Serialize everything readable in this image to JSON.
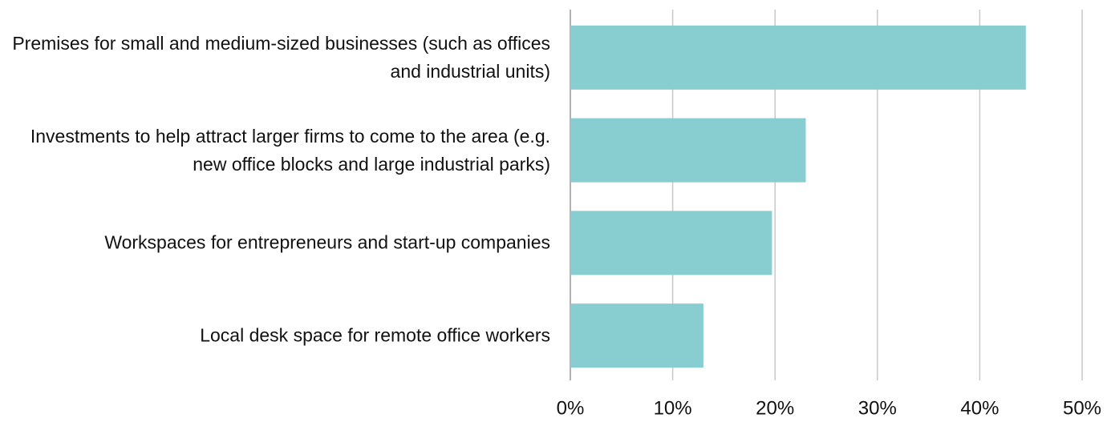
{
  "chart_data": {
    "type": "barh",
    "categories": [
      "Premises for small and medium-sized businesses (such as offices and industrial units)",
      "Investments to help attract larger firms to come to the area (e.g. new office blocks and large industrial parks)",
      "Workspaces for entrepreneurs and start-up companies",
      "Local desk space for remote office workers"
    ],
    "values": [
      44.5,
      23,
      19.7,
      13
    ],
    "color": "#88cdd0",
    "xlim": [
      0,
      50
    ],
    "xticks": [
      {
        "value": 0,
        "label": "0%"
      },
      {
        "value": 10,
        "label": "10%"
      },
      {
        "value": 20,
        "label": "20%"
      },
      {
        "value": 30,
        "label": "30%"
      },
      {
        "value": 40,
        "label": "40%"
      },
      {
        "value": 50,
        "label": "50%"
      }
    ],
    "grid": true
  }
}
